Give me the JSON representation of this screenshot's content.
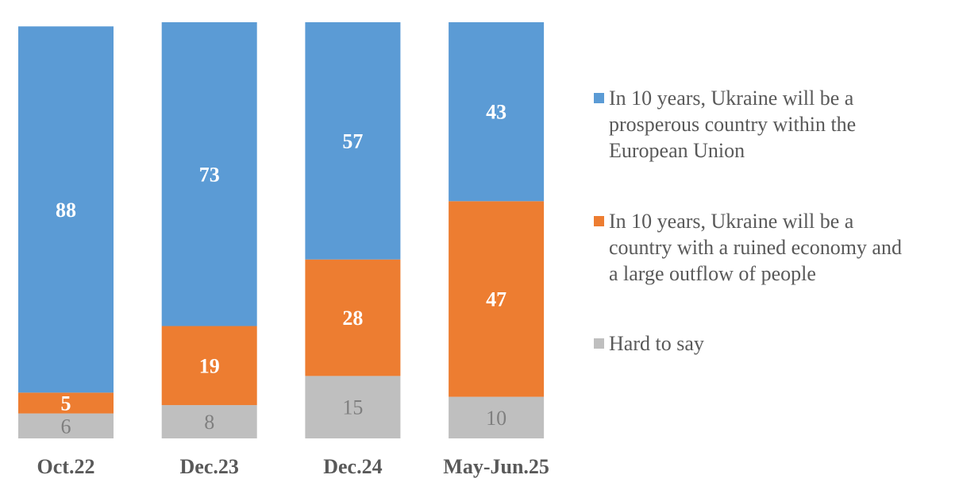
{
  "chart_data": {
    "type": "bar",
    "stacked": true,
    "title": "",
    "xlabel": "",
    "ylabel": "",
    "ylim": [
      0,
      100
    ],
    "grid": false,
    "legend_position": "right",
    "categories": [
      "Oct.22",
      "Dec.23",
      "Dec.24",
      "May-Jun.25"
    ],
    "series": [
      {
        "name": "Hard to say",
        "color": "#BFBFBF",
        "label_color": "#7F7F7F",
        "label_bold": false,
        "values": [
          6,
          8,
          15,
          10
        ]
      },
      {
        "name": "In 10 years, Ukraine will be a country with a ruined economy and a large outflow of people",
        "color": "#ED7D31",
        "label_color": "#FFFFFF",
        "label_bold": true,
        "values": [
          5,
          19,
          28,
          47
        ]
      },
      {
        "name": "In 10 years, Ukraine will be a prosperous country within the European Union",
        "color": "#5B9BD5",
        "label_color": "#FFFFFF",
        "label_bold": true,
        "values": [
          88,
          73,
          57,
          43
        ]
      }
    ]
  },
  "legend": {
    "items": [
      {
        "text": "In 10 years, Ukraine will be a\nprosperous country within the\nEuropean Union",
        "color": "#5B9BD5"
      },
      {
        "text": "In 10 years, Ukraine will be a\ncountry with a ruined economy and\na large outflow of people",
        "color": "#ED7D31"
      },
      {
        "text": "Hard to say",
        "color": "#BFBFBF"
      }
    ]
  }
}
